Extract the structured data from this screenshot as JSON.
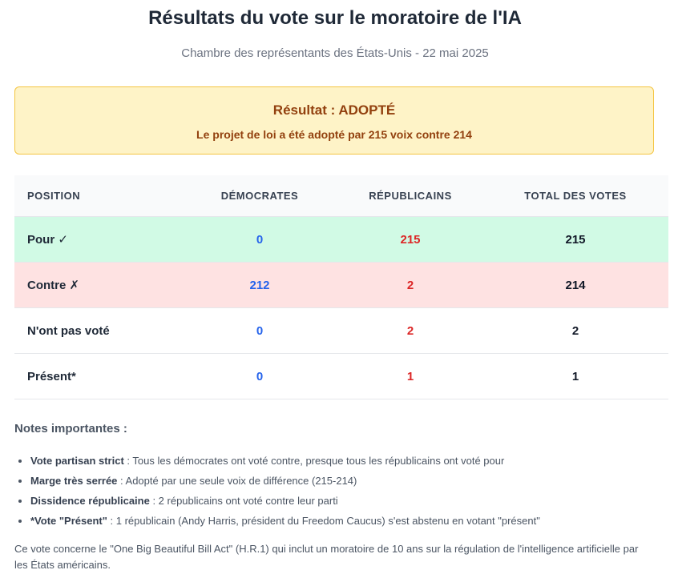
{
  "header": {
    "title": "Résultats du vote sur le moratoire de l'IA",
    "subtitle": "Chambre des représentants des États-Unis - 22 mai 2025"
  },
  "result": {
    "title": "Résultat : ADOPTÉ",
    "detail": "Le projet de loi a été adopté par 215 voix contre 214"
  },
  "table": {
    "headers": {
      "position": "POSITION",
      "democrats": "DÉMOCRATES",
      "republicans": "RÉPUBLICAINS",
      "total": "TOTAL DES VOTES"
    },
    "rows": [
      {
        "position": "Pour ✓",
        "democrats": "0",
        "republicans": "215",
        "total": "215"
      },
      {
        "position": "Contre ✗",
        "democrats": "212",
        "republicans": "2",
        "total": "214"
      },
      {
        "position": "N'ont pas voté",
        "democrats": "0",
        "republicans": "2",
        "total": "2"
      },
      {
        "position": "Présent*",
        "democrats": "0",
        "republicans": "1",
        "total": "1"
      }
    ]
  },
  "notes": {
    "title": "Notes importantes :",
    "items": [
      {
        "label": "Vote partisan strict",
        "text": " : Tous les démocrates ont voté contre, presque tous les républicains ont voté pour"
      },
      {
        "label": "Marge très serrée",
        "text": " : Adopté par une seule voix de différence (215-214)"
      },
      {
        "label": "Dissidence républicaine",
        "text": " : 2 républicains ont voté contre leur parti"
      },
      {
        "label": "*Vote \"Présent\"",
        "text": " : 1 républicain (Andy Harris, président du Freedom Caucus) s'est abstenu en votant \"présent\""
      }
    ]
  },
  "footer": {
    "text": "Ce vote concerne le \"One Big Beautiful Bill Act\" (H.R.1) qui inclut un moratoire de 10 ans sur la régulation de l'intelligence artificielle par les États américains."
  }
}
